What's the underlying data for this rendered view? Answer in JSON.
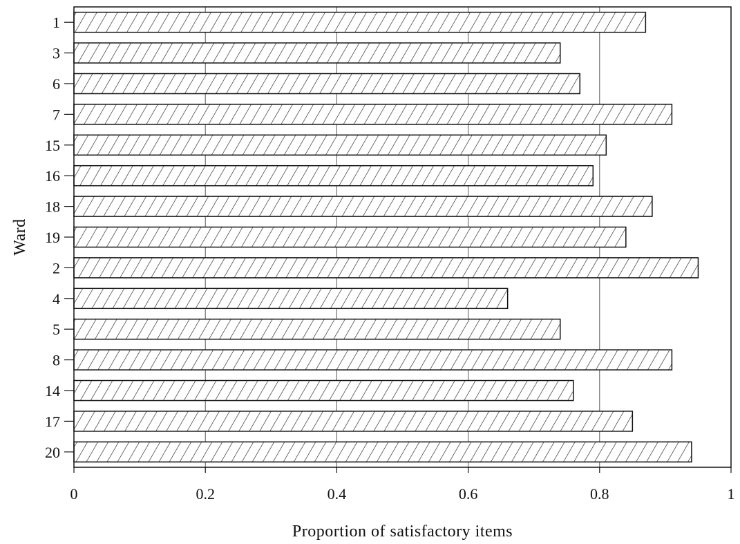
{
  "chart_data": {
    "type": "bar",
    "orientation": "horizontal",
    "categories": [
      "1",
      "3",
      "6",
      "7",
      "15",
      "16",
      "18",
      "19",
      "2",
      "4",
      "5",
      "8",
      "14",
      "17",
      "20"
    ],
    "values": [
      0.87,
      0.74,
      0.77,
      0.91,
      0.81,
      0.79,
      0.88,
      0.84,
      0.95,
      0.66,
      0.74,
      0.91,
      0.76,
      0.85,
      0.94
    ],
    "title": "",
    "xlabel": "Proportion of satisfactory items",
    "ylabel": "Ward",
    "xlim": [
      0,
      1
    ],
    "xticks": [
      "0",
      "0.2",
      "0.4",
      "0.6",
      "0.8",
      "1"
    ],
    "grid": "vertical",
    "bar_fill": "diagonal-hatch"
  }
}
